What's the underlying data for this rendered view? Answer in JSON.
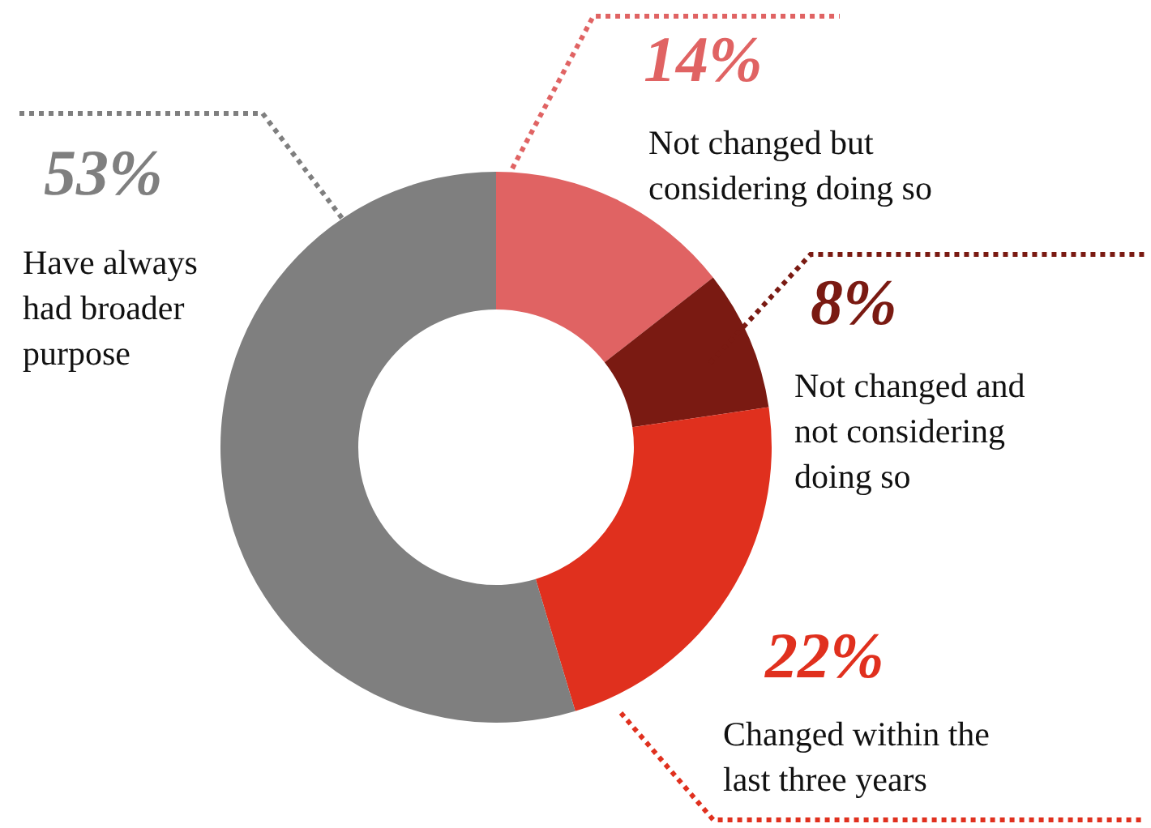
{
  "chart_data": {
    "type": "donut",
    "categories": [
      "Not changed but considering doing so",
      "Not changed and not considering doing so",
      "Changed within the last three years",
      "Have always had broader purpose"
    ],
    "values": [
      14,
      8,
      22,
      53
    ],
    "colors": [
      "#e06363",
      "#7a1a12",
      "#e0301e",
      "#7f7f7f"
    ],
    "value_labels": [
      "14%",
      "8%",
      "22%",
      "53%"
    ]
  }
}
